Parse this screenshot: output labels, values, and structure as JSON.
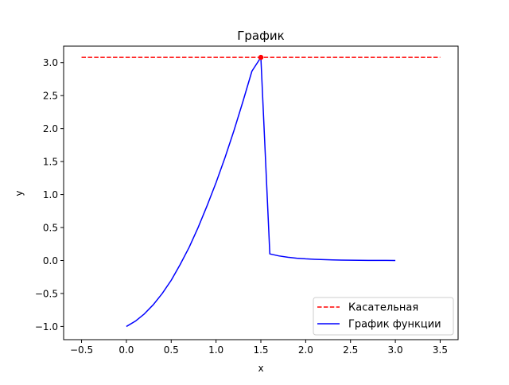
{
  "chart_data": {
    "type": "line",
    "title": "График",
    "xlabel": "x",
    "ylabel": "y",
    "xlim": [
      -0.7,
      3.7
    ],
    "ylim": [
      -1.2,
      3.25
    ],
    "xticks": [
      -0.5,
      0.0,
      0.5,
      1.0,
      1.5,
      2.0,
      2.5,
      3.0,
      3.5
    ],
    "xtick_labels": [
      "−0.5",
      "0.0",
      "0.5",
      "1.0",
      "1.5",
      "2.0",
      "2.5",
      "3.0",
      "3.5"
    ],
    "yticks": [
      -1.0,
      -0.5,
      0.0,
      0.5,
      1.0,
      1.5,
      2.0,
      2.5,
      3.0
    ],
    "ytick_labels": [
      "−1.0",
      "−0.5",
      "0.0",
      "0.5",
      "1.0",
      "1.5",
      "2.0",
      "2.5",
      "3.0"
    ],
    "grid": false,
    "legend_position": "lower-right",
    "series": [
      {
        "name": "Касательная",
        "style": "dashed",
        "color": "#ff0000",
        "x": [
          -0.5,
          3.5
        ],
        "y": [
          3.08,
          3.08
        ]
      },
      {
        "name": "График функции",
        "style": "solid",
        "color": "#0000ff",
        "x": [
          0.0,
          0.1,
          0.2,
          0.3,
          0.4,
          0.5,
          0.6,
          0.7,
          0.8,
          0.9,
          1.0,
          1.1,
          1.2,
          1.3,
          1.4,
          1.5,
          1.6,
          1.7,
          1.8,
          1.9,
          2.0,
          2.1,
          2.2,
          2.3,
          2.4,
          2.5,
          2.6,
          2.7,
          2.8,
          2.9,
          3.0
        ],
        "y": [
          -1.0,
          -0.92,
          -0.81,
          -0.67,
          -0.5,
          -0.3,
          -0.06,
          0.2,
          0.5,
          0.83,
          1.18,
          1.56,
          1.97,
          2.41,
          2.87,
          3.08,
          0.1,
          0.07,
          0.05,
          0.035,
          0.025,
          0.018,
          0.013,
          0.009,
          0.006,
          0.004,
          0.003,
          0.002,
          0.001,
          0.001,
          0.0
        ]
      }
    ],
    "points": [
      {
        "x": 1.5,
        "y": 3.08,
        "color": "#ff0000"
      }
    ]
  }
}
